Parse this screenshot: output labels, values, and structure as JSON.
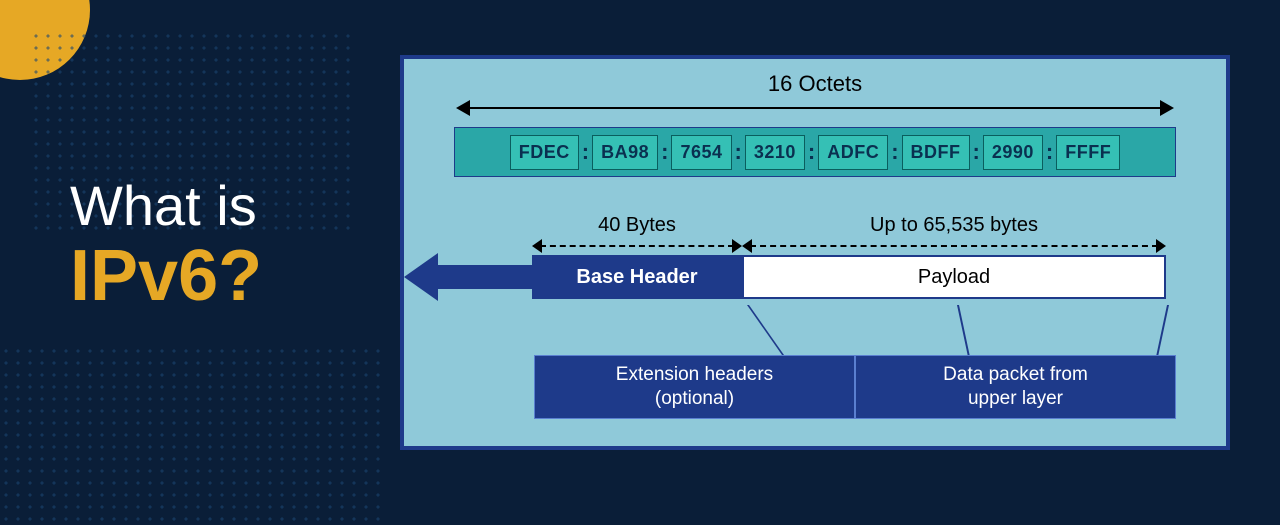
{
  "title": {
    "line1": "What is",
    "line2": "IPv6?",
    "line1_color": "#ffffff",
    "line2_color": "#e6a825"
  },
  "colors": {
    "background": "#0a1e38",
    "accent": "#e6a825",
    "panel_bg": "#8fc9d9",
    "panel_border": "#1e3a8a",
    "dark_blue": "#1e3a8a",
    "addr_bg": "#2aa7a7",
    "hex_bg": "#35c0b5",
    "white": "#ffffff"
  },
  "octets_label": "16 Octets",
  "address_hextets": [
    "FDEC",
    "BA98",
    "7654",
    "3210",
    "ADFC",
    "BDFF",
    "2990",
    "FFFF"
  ],
  "packet": {
    "header_size_label": "40 Bytes",
    "payload_size_label": "Up to 65,535 bytes",
    "base_header_label": "Base  Header",
    "payload_label": "Payload"
  },
  "details": {
    "ext_headers": "Extension headers\n(optional)",
    "data_packet": "Data packet from\nupper layer"
  }
}
